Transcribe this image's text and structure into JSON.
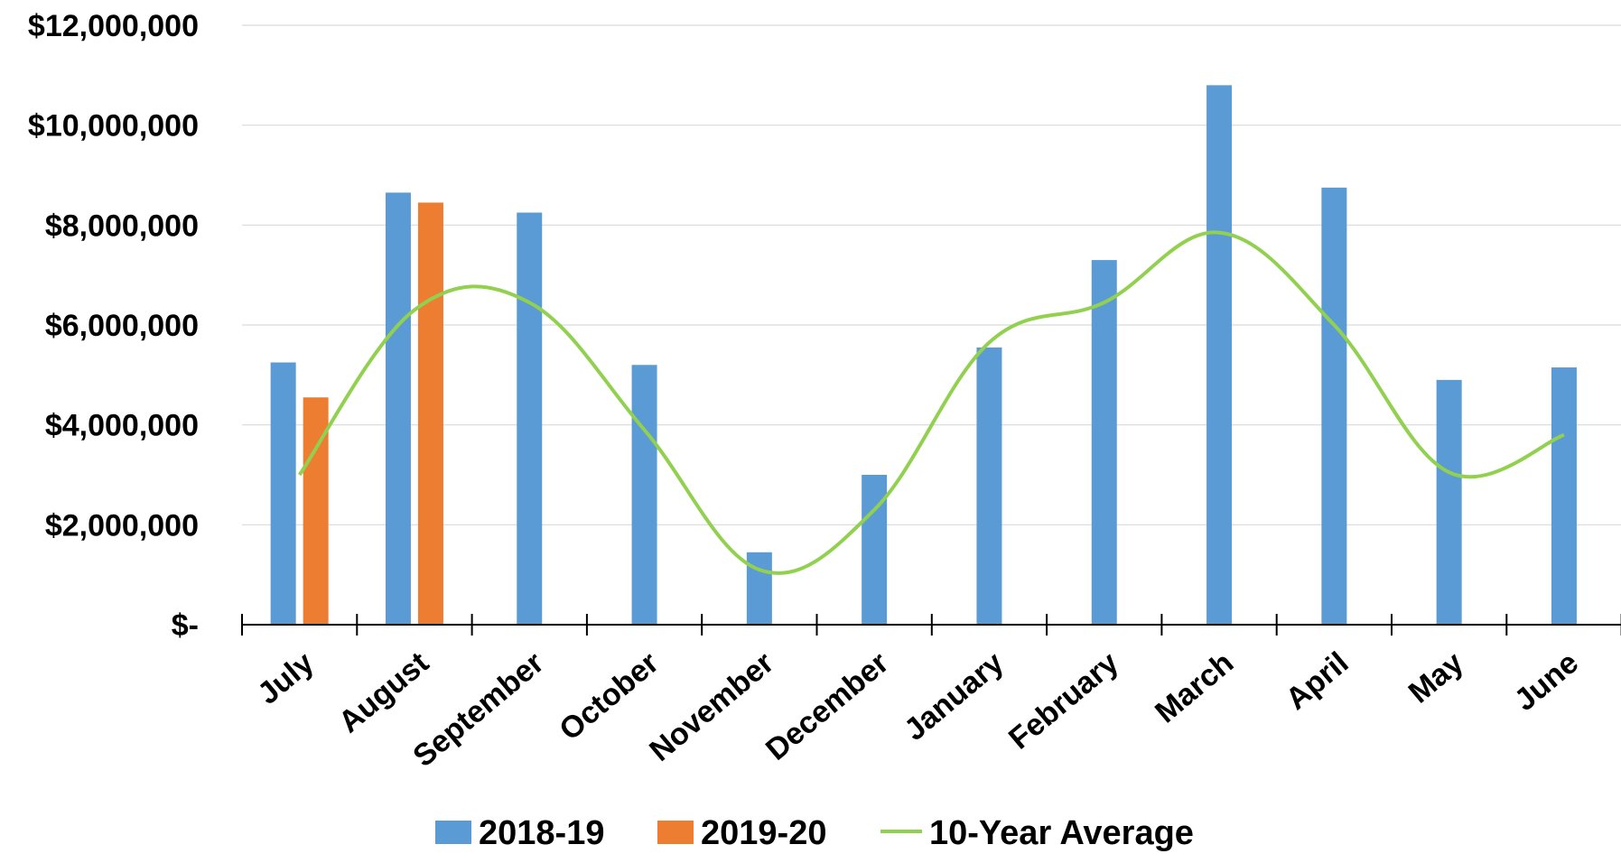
{
  "chart_data": {
    "type": "bar",
    "categories": [
      "July",
      "August",
      "September",
      "October",
      "November",
      "December",
      "January",
      "February",
      "March",
      "April",
      "May",
      "June"
    ],
    "series": [
      {
        "name": "2018-19",
        "type": "bar",
        "color": "#5b9bd5",
        "values": [
          5250000,
          8650000,
          8250000,
          5200000,
          1450000,
          3000000,
          5550000,
          7300000,
          10800000,
          8750000,
          4900000,
          5150000
        ]
      },
      {
        "name": "2019-20",
        "type": "bar",
        "color": "#ed7d31",
        "values": [
          4550000,
          8450000,
          null,
          null,
          null,
          null,
          null,
          null,
          null,
          null,
          null,
          null
        ]
      },
      {
        "name": "10-Year Average",
        "type": "line",
        "smooth": true,
        "color": "#92d050",
        "values": [
          3000000,
          6300000,
          6450000,
          3900000,
          1100000,
          2300000,
          5650000,
          6450000,
          7850000,
          6000000,
          3050000,
          3800000
        ]
      }
    ],
    "ylim": [
      0,
      12000000
    ],
    "yticks": [
      0,
      2000000,
      4000000,
      6000000,
      8000000,
      10000000,
      12000000
    ],
    "ytick_labels": [
      "$-",
      "$2,000,000",
      "$4,000,000",
      "$6,000,000",
      "$8,000,000",
      "$10,000,000",
      "$12,000,000"
    ],
    "grid": true,
    "legend": "bottom",
    "title": "",
    "xlabel": "",
    "ylabel": ""
  }
}
